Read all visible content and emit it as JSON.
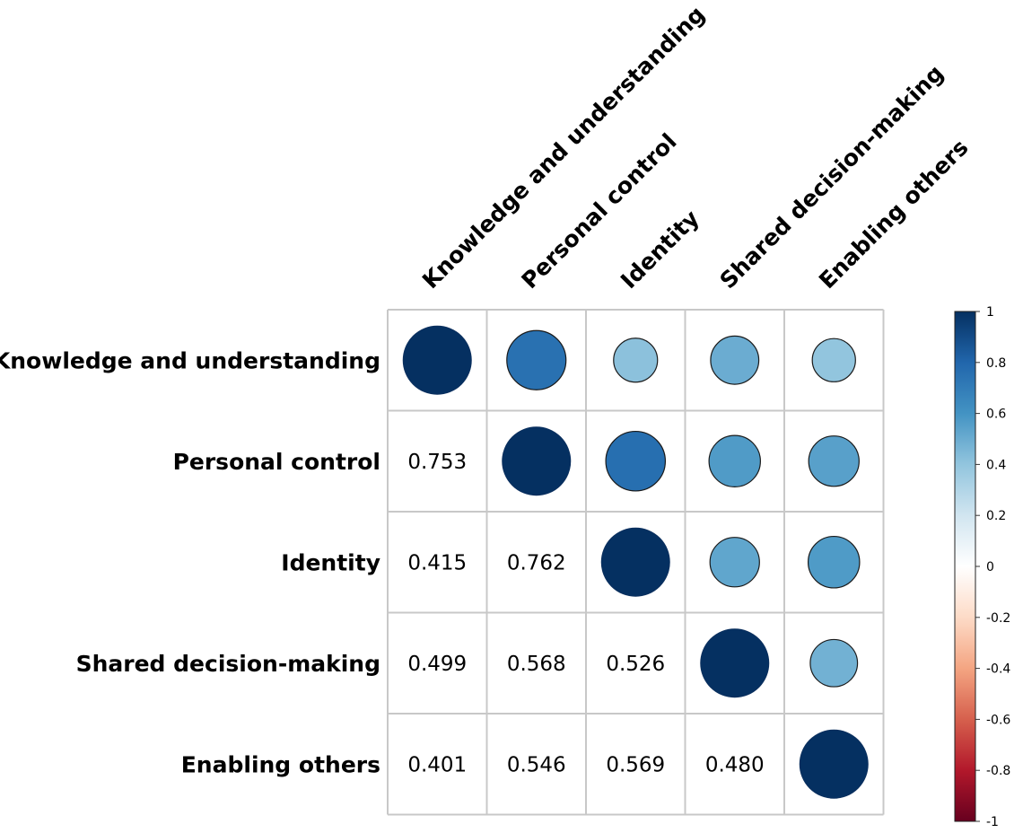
{
  "chart_data": {
    "type": "heatmap",
    "subtype": "correlation-matrix (upper: circles, lower: numbers)",
    "variables": [
      "Knowledge and understanding",
      "Personal control",
      "Identity",
      "Shared decision-making",
      "Enabling others"
    ],
    "matrix": [
      [
        1.0,
        0.753,
        0.415,
        0.499,
        0.401
      ],
      [
        0.753,
        1.0,
        0.762,
        0.568,
        0.546
      ],
      [
        0.415,
        0.762,
        1.0,
        0.526,
        0.569
      ],
      [
        0.499,
        0.568,
        0.526,
        1.0,
        0.48
      ],
      [
        0.401,
        0.546,
        0.569,
        0.48,
        1.0
      ]
    ],
    "value_labels": {
      "1-0": "0.753",
      "2-0": "0.415",
      "2-1": "0.762",
      "3-0": "0.499",
      "3-1": "0.568",
      "3-2": "0.526",
      "4-0": "0.401",
      "4-1": "0.546",
      "4-2": "0.569",
      "4-3": "0.480"
    },
    "colorbar": {
      "range": [
        -1,
        1
      ],
      "ticks": [
        "1",
        "0.8",
        "0.6",
        "0.4",
        "0.2",
        "0",
        "-0.2",
        "-0.4",
        "-0.6",
        "-0.8",
        "-1"
      ],
      "colors": [
        "#67001F",
        "#B2182B",
        "#D6604D",
        "#F4A582",
        "#FDDBC7",
        "#FFFFFF",
        "#D1E5F0",
        "#92C5DE",
        "#4393C3",
        "#2166AC",
        "#053061"
      ]
    },
    "grid": true,
    "legend": "right"
  }
}
